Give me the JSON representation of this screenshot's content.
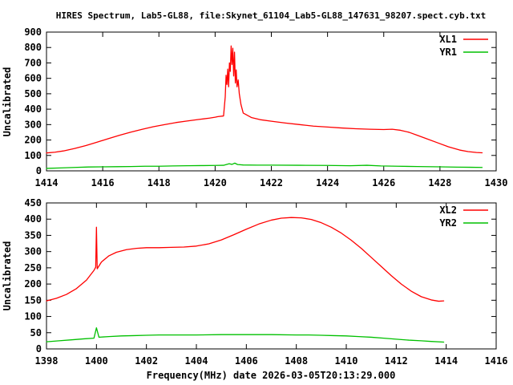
{
  "title": "HIRES Spectrum, Lab5-GL88, file:Skynet_61104_Lab5-GL88_147631_98207.spect.cyb.txt",
  "colors": {
    "red": "#ff0000",
    "green": "#00c000",
    "foreground": "#000000",
    "background": "#ffffff"
  },
  "chart_data": [
    {
      "type": "line",
      "ylabel": "Uncalibrated",
      "xlabel": "",
      "xlim": [
        1414,
        1430
      ],
      "ylim": [
        0,
        900
      ],
      "xticks": [
        1414,
        1416,
        1418,
        1420,
        1422,
        1424,
        1426,
        1428,
        1430
      ],
      "yticks": [
        0,
        100,
        200,
        300,
        400,
        500,
        600,
        700,
        800,
        900
      ],
      "grid": false,
      "legend_position": "top-right",
      "series": [
        {
          "name": "XL1",
          "color": "#ff0000",
          "points": [
            [
              1414.0,
              116
            ],
            [
              1414.3,
              121
            ],
            [
              1414.6,
              129
            ],
            [
              1415.0,
              145
            ],
            [
              1415.4,
              164
            ],
            [
              1415.8,
              186
            ],
            [
              1416.2,
              209
            ],
            [
              1416.6,
              231
            ],
            [
              1417.0,
              251
            ],
            [
              1417.4,
              269
            ],
            [
              1417.8,
              286
            ],
            [
              1418.2,
              300
            ],
            [
              1418.6,
              313
            ],
            [
              1419.0,
              323
            ],
            [
              1419.4,
              333
            ],
            [
              1419.8,
              342
            ],
            [
              1420.0,
              348
            ],
            [
              1420.1,
              352
            ],
            [
              1420.3,
              356
            ],
            [
              1420.36,
              480
            ],
            [
              1420.39,
              620
            ],
            [
              1420.42,
              560
            ],
            [
              1420.45,
              660
            ],
            [
              1420.48,
              545
            ],
            [
              1420.51,
              700
            ],
            [
              1420.54,
              645
            ],
            [
              1420.57,
              810
            ],
            [
              1420.6,
              690
            ],
            [
              1420.63,
              795
            ],
            [
              1420.66,
              615
            ],
            [
              1420.69,
              770
            ],
            [
              1420.72,
              570
            ],
            [
              1420.75,
              655
            ],
            [
              1420.78,
              545
            ],
            [
              1420.82,
              590
            ],
            [
              1420.86,
              500
            ],
            [
              1420.92,
              430
            ],
            [
              1421.0,
              375
            ],
            [
              1421.3,
              345
            ],
            [
              1421.6,
              332
            ],
            [
              1422.0,
              322
            ],
            [
              1422.5,
              310
            ],
            [
              1423.0,
              300
            ],
            [
              1423.5,
              290
            ],
            [
              1424.0,
              284
            ],
            [
              1424.5,
              278
            ],
            [
              1425.0,
              273
            ],
            [
              1425.5,
              270
            ],
            [
              1426.0,
              268
            ],
            [
              1426.3,
              270
            ],
            [
              1426.6,
              263
            ],
            [
              1426.9,
              250
            ],
            [
              1427.2,
              230
            ],
            [
              1427.5,
              210
            ],
            [
              1427.9,
              183
            ],
            [
              1428.3,
              156
            ],
            [
              1428.7,
              135
            ],
            [
              1429.0,
              125
            ],
            [
              1429.3,
              119
            ],
            [
              1429.5,
              117
            ]
          ]
        },
        {
          "name": "YR1",
          "color": "#00c000",
          "points": [
            [
              1414.0,
              16
            ],
            [
              1414.5,
              19
            ],
            [
              1415.0,
              22
            ],
            [
              1415.5,
              25
            ],
            [
              1416.0,
              26
            ],
            [
              1416.5,
              27
            ],
            [
              1417.0,
              28
            ],
            [
              1417.5,
              30
            ],
            [
              1418.0,
              30
            ],
            [
              1418.5,
              32
            ],
            [
              1419.0,
              33
            ],
            [
              1419.5,
              34
            ],
            [
              1420.0,
              35
            ],
            [
              1420.3,
              36
            ],
            [
              1420.5,
              46
            ],
            [
              1420.6,
              42
            ],
            [
              1420.7,
              50
            ],
            [
              1420.8,
              41
            ],
            [
              1421.0,
              38
            ],
            [
              1421.5,
              37
            ],
            [
              1422.0,
              37
            ],
            [
              1423.0,
              36
            ],
            [
              1424.0,
              35
            ],
            [
              1424.8,
              33
            ],
            [
              1425.4,
              36
            ],
            [
              1425.9,
              32
            ],
            [
              1426.5,
              30
            ],
            [
              1427.2,
              28
            ],
            [
              1428.0,
              26
            ],
            [
              1428.6,
              24
            ],
            [
              1429.1,
              23
            ],
            [
              1429.5,
              22
            ]
          ]
        }
      ]
    },
    {
      "type": "line",
      "ylabel": "Uncalibrated",
      "xlabel": "Frequency(MHz) date 2026-03-05T20:13:29.000",
      "xlim": [
        1398,
        1416
      ],
      "ylim": [
        0,
        450
      ],
      "xticks": [
        1398,
        1400,
        1402,
        1404,
        1406,
        1408,
        1410,
        1412,
        1414,
        1416
      ],
      "yticks": [
        0,
        50,
        100,
        150,
        200,
        250,
        300,
        350,
        400,
        450
      ],
      "grid": false,
      "legend_position": "top-right",
      "series": [
        {
          "name": "XL2",
          "color": "#ff0000",
          "points": [
            [
              1398.0,
              148
            ],
            [
              1398.4,
              156
            ],
            [
              1398.8,
              168
            ],
            [
              1399.2,
              186
            ],
            [
              1399.6,
              212
            ],
            [
              1399.9,
              242
            ],
            [
              1399.97,
              252
            ],
            [
              1400.0,
              375
            ],
            [
              1400.03,
              247
            ],
            [
              1400.2,
              268
            ],
            [
              1400.5,
              287
            ],
            [
              1400.8,
              298
            ],
            [
              1401.2,
              306
            ],
            [
              1401.6,
              310
            ],
            [
              1402.0,
              312
            ],
            [
              1402.5,
              312
            ],
            [
              1403.0,
              313
            ],
            [
              1403.5,
              314
            ],
            [
              1404.0,
              317
            ],
            [
              1404.5,
              324
            ],
            [
              1405.0,
              336
            ],
            [
              1405.5,
              352
            ],
            [
              1406.0,
              369
            ],
            [
              1406.5,
              385
            ],
            [
              1407.0,
              397
            ],
            [
              1407.4,
              403
            ],
            [
              1407.8,
              405
            ],
            [
              1408.2,
              404
            ],
            [
              1408.6,
              399
            ],
            [
              1409.0,
              389
            ],
            [
              1409.4,
              375
            ],
            [
              1409.8,
              357
            ],
            [
              1410.2,
              335
            ],
            [
              1410.6,
              310
            ],
            [
              1411.0,
              282
            ],
            [
              1411.4,
              254
            ],
            [
              1411.8,
              226
            ],
            [
              1412.2,
              200
            ],
            [
              1412.6,
              178
            ],
            [
              1413.0,
              161
            ],
            [
              1413.4,
              151
            ],
            [
              1413.7,
              147
            ],
            [
              1413.9,
              148
            ]
          ]
        },
        {
          "name": "YR2",
          "color": "#00c000",
          "points": [
            [
              1398.0,
              22
            ],
            [
              1398.5,
              25
            ],
            [
              1399.0,
              28
            ],
            [
              1399.5,
              31
            ],
            [
              1399.9,
              33
            ],
            [
              1400.0,
              65
            ],
            [
              1400.1,
              36
            ],
            [
              1400.5,
              38
            ],
            [
              1401.0,
              40
            ],
            [
              1401.5,
              41
            ],
            [
              1402.0,
              42
            ],
            [
              1402.5,
              43
            ],
            [
              1403.0,
              43
            ],
            [
              1404.0,
              43
            ],
            [
              1405.0,
              44
            ],
            [
              1406.0,
              44
            ],
            [
              1407.0,
              44
            ],
            [
              1408.0,
              43
            ],
            [
              1408.5,
              43
            ],
            [
              1409.0,
              42
            ],
            [
              1409.5,
              41
            ],
            [
              1410.0,
              40
            ],
            [
              1410.5,
              38
            ],
            [
              1411.0,
              36
            ],
            [
              1411.5,
              33
            ],
            [
              1412.0,
              30
            ],
            [
              1412.5,
              27
            ],
            [
              1413.0,
              25
            ],
            [
              1413.4,
              23
            ],
            [
              1413.9,
              21
            ]
          ]
        }
      ]
    }
  ]
}
